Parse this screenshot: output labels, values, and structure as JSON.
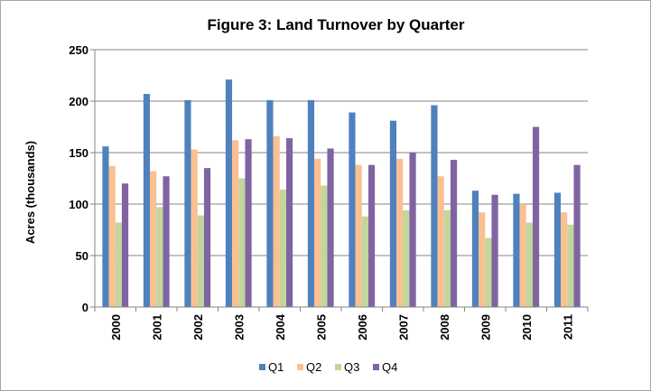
{
  "chart_data": {
    "type": "bar",
    "title": "Figure 3: Land Turnover by Quarter",
    "ylabel": "Acres (thousands)",
    "xlabel": "",
    "categories": [
      "2000",
      "2001",
      "2002",
      "2003",
      "2004",
      "2005",
      "2006",
      "2007",
      "2008",
      "2009",
      "2010",
      "2011"
    ],
    "ylim": [
      0,
      250
    ],
    "yticks": [
      0,
      50,
      100,
      150,
      200,
      250
    ],
    "grid": true,
    "legend_position": "bottom",
    "series": [
      {
        "name": "Q1",
        "color": "#4f81bd",
        "values": [
          156,
          207,
          201,
          221,
          201,
          201,
          189,
          181,
          196,
          113,
          110,
          111
        ]
      },
      {
        "name": "Q2",
        "color": "#fac090",
        "values": [
          137,
          132,
          153,
          162,
          166,
          144,
          138,
          144,
          127,
          92,
          100,
          92
        ]
      },
      {
        "name": "Q3",
        "color": "#c3d69b",
        "values": [
          82,
          97,
          89,
          125,
          114,
          118,
          88,
          94,
          94,
          67,
          82,
          80
        ]
      },
      {
        "name": "Q4",
        "color": "#8064a2",
        "values": [
          120,
          127,
          135,
          163,
          164,
          154,
          138,
          150,
          143,
          109,
          175,
          138
        ]
      }
    ]
  }
}
